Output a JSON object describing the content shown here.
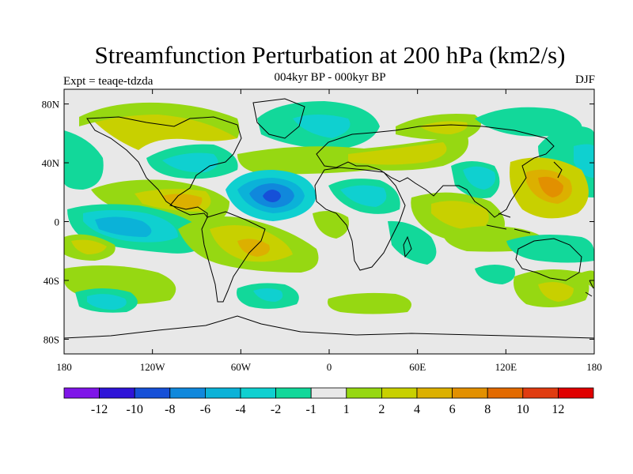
{
  "title": "Streamfunction Perturbation at 200 hPa (km2/s)",
  "subtitle": "004kyr BP - 000kyr BP",
  "experiment": "Expt = teaqe-tdzda",
  "season": "DJF",
  "map": {
    "lon_range": [
      -180,
      180
    ],
    "lat_range": [
      -90,
      90
    ],
    "lat_ticks": [
      {
        "value": 80,
        "label": "80N"
      },
      {
        "value": 40,
        "label": "40N"
      },
      {
        "value": 0,
        "label": "0"
      },
      {
        "value": -40,
        "label": "40S"
      },
      {
        "value": -80,
        "label": "80S"
      }
    ],
    "lon_ticks": [
      {
        "value": -180,
        "label": "180"
      },
      {
        "value": -120,
        "label": "120W"
      },
      {
        "value": -60,
        "label": "60W"
      },
      {
        "value": 0,
        "label": "0"
      },
      {
        "value": 60,
        "label": "60E"
      },
      {
        "value": 120,
        "label": "120E"
      },
      {
        "value": 180,
        "label": "180"
      }
    ]
  },
  "colorbar": {
    "colors": [
      "#7f15e8",
      "#2f14d8",
      "#1650d8",
      "#1088dc",
      "#0bb2d8",
      "#0fd0d0",
      "#12d89a",
      "#e8e8e8",
      "#96d812",
      "#c8d000",
      "#dcb000",
      "#e29000",
      "#e26a00",
      "#e03c10",
      "#e00000"
    ],
    "labels": [
      "-12",
      "-10",
      "-8",
      "-6",
      "-4",
      "-2",
      "-1",
      "1",
      "2",
      "4",
      "6",
      "8",
      "10",
      "12"
    ]
  }
}
